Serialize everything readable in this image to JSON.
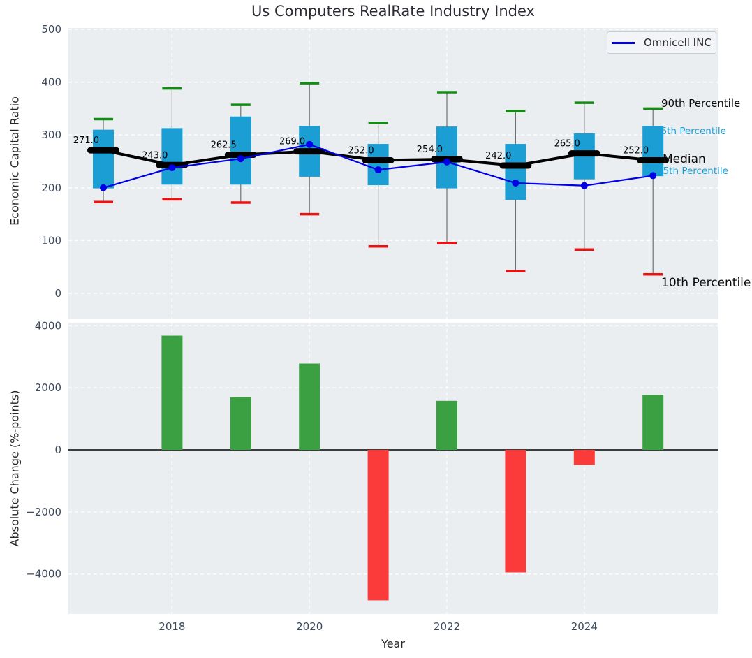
{
  "legend": {
    "label": "Omnicell INC",
    "line_color": "#0000e6"
  },
  "colors": {
    "figure_bg": "#ffffff",
    "axes_bg": "#ebeef1",
    "box_fill": "#1b9ed3",
    "whisker_line": "#707070",
    "cap_high": "#128c12",
    "cap_low": "#ea1111",
    "median": "#000000",
    "company_line": "#0000e6",
    "bar_positive": "#3ba041",
    "bar_negative": "#fb3a3a",
    "tick_label": "#3c4a5e",
    "annotation_cyan": "#18a0d6"
  },
  "chart_data": [
    {
      "type": "box-whisker-line",
      "title": "Us Computers RealRate Industry Index",
      "ylabel": "Economic Capital Ratio",
      "xlabel": "",
      "ylim": [
        -49,
        503
      ],
      "yticks": [
        0,
        100,
        200,
        300,
        400,
        500
      ],
      "xticks": [
        2018,
        2020,
        2022,
        2024
      ],
      "grid": true,
      "legend_position": "upper right",
      "categories": [
        2017,
        2018,
        2019,
        2020,
        2021,
        2022,
        2023,
        2024,
        2025
      ],
      "series": [
        {
          "name": "90th Percentile",
          "values": [
            330,
            388,
            357,
            398,
            323,
            381,
            345,
            361,
            350
          ]
        },
        {
          "name": "75th Percentile",
          "values": [
            310,
            313,
            335,
            317,
            283,
            316,
            283,
            303,
            317
          ]
        },
        {
          "name": "Median",
          "values": [
            271.0,
            243.0,
            262.5,
            269.0,
            252.0,
            254.0,
            242.0,
            265.0,
            252.0
          ]
        },
        {
          "name": "25th Percentile",
          "values": [
            199,
            206,
            206,
            221,
            205,
            199,
            177,
            216,
            222
          ]
        },
        {
          "name": "10th Percentile",
          "values": [
            173,
            178,
            172,
            150,
            89,
            95,
            42,
            83,
            36
          ]
        },
        {
          "name": "Omnicell INC",
          "values": [
            200,
            238,
            255,
            282,
            234,
            249,
            209,
            204,
            223
          ]
        }
      ],
      "median_labels": [
        "271.0",
        "243.0",
        "262.5",
        "269.0",
        "252.0",
        "254.0",
        "242.0",
        "265.0",
        "252.0"
      ],
      "annotations": {
        "p90": "90th Percentile",
        "p75": "75th Percentile",
        "median": "Median",
        "p25": "25th Percentile",
        "p10": "10th Percentile"
      }
    },
    {
      "type": "bar",
      "title": "",
      "ylabel": "Absolute Change (%-points)",
      "xlabel": "Year",
      "ylim": [
        -5300,
        4150
      ],
      "yticks": [
        -4000,
        -2000,
        0,
        2000,
        4000
      ],
      "xticks": [
        2018,
        2020,
        2022,
        2024
      ],
      "grid": true,
      "zero_line": true,
      "categories": [
        2018,
        2019,
        2020,
        2021,
        2022,
        2023,
        2024,
        2025
      ],
      "values": [
        3680,
        1700,
        2780,
        -4850,
        1580,
        -3950,
        -480,
        1770
      ]
    }
  ]
}
